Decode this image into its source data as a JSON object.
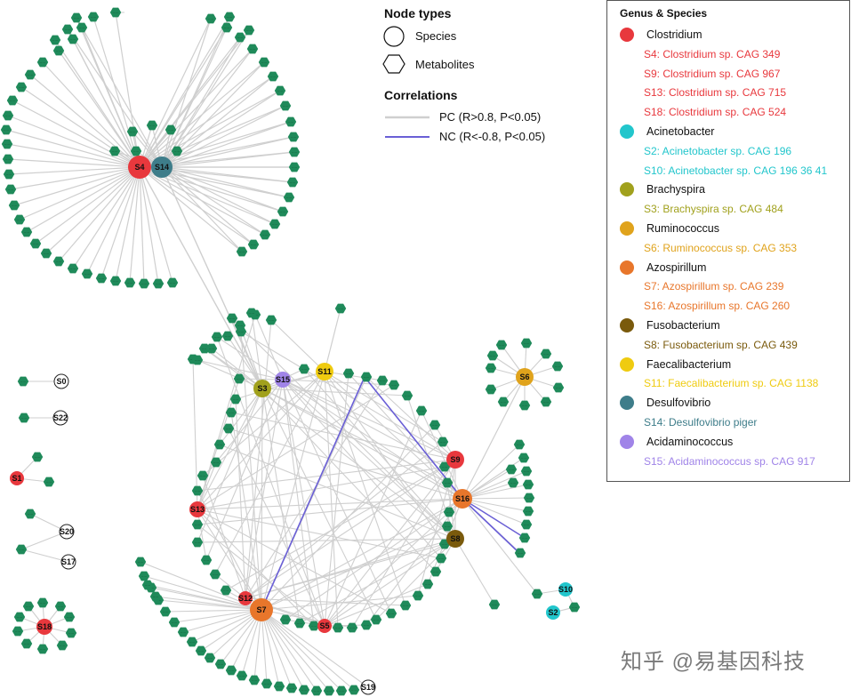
{
  "legend_types": {
    "title": "Node types",
    "species": "Species",
    "metabolites": "Metabolites",
    "corr_title": "Correlations",
    "pc": "PC (R>0.8, P<0.05)",
    "nc": "NC (R<-0.8, P<0.05)",
    "pc_color": "#cfcfcf",
    "nc_color": "#6a5fd6"
  },
  "genus_legend": {
    "title": "Genus & Species",
    "groups": [
      {
        "genus": "Clostridium",
        "color": "#e8383d",
        "species": [
          "S4: Clostridium sp. CAG 349",
          "S9: Clostridium sp. CAG 967",
          "S13: Clostridium sp. CAG 715",
          "S18: Clostridium sp. CAG 524"
        ]
      },
      {
        "genus": "Acinetobacter",
        "color": "#22c6cc",
        "species": [
          "S2: Acinetobacter sp. CAG 196",
          "S10: Acinetobacter sp. CAG 196 36 41"
        ]
      },
      {
        "genus": "Brachyspira",
        "color": "#a1a11d",
        "species": [
          "S3: Brachyspira sp. CAG 484"
        ]
      },
      {
        "genus": "Ruminococcus",
        "color": "#e0a31c",
        "species": [
          "S6: Ruminococcus sp. CAG 353"
        ]
      },
      {
        "genus": "Azospirillum",
        "color": "#e8762b",
        "species": [
          "S7: Azospirillum sp. CAG 239",
          "S16: Azospirillum sp. CAG 260"
        ]
      },
      {
        "genus": "Fusobacterium",
        "color": "#7a5a0c",
        "species": [
          "S8: Fusobacterium sp. CAG 439"
        ]
      },
      {
        "genus": "Faecalibacterium",
        "color": "#efcb10",
        "species": [
          "S11: Faecalibacterium sp. CAG 1138"
        ]
      },
      {
        "genus": "Desulfovibrio",
        "color": "#3e7d8a",
        "species": [
          "S14: Desulfovibrio piger"
        ]
      },
      {
        "genus": "Acidaminococcus",
        "color": "#a084e8",
        "species": [
          "S15: Acidaminococcus sp. CAG 917"
        ]
      }
    ]
  },
  "metabolite_color": "#1f8a5a",
  "species_nodes": [
    {
      "id": "S4",
      "fill": "#e8383d"
    },
    {
      "id": "S14",
      "fill": "#3e7d8a"
    },
    {
      "id": "S3",
      "fill": "#a1a11d"
    },
    {
      "id": "S15",
      "fill": "#a084e8"
    },
    {
      "id": "S11",
      "fill": "#efcb10"
    },
    {
      "id": "S6",
      "fill": "#e0a31c"
    },
    {
      "id": "S9",
      "fill": "#e8383d"
    },
    {
      "id": "S16",
      "fill": "#e8762b"
    },
    {
      "id": "S8",
      "fill": "#7a5a0c"
    },
    {
      "id": "S13",
      "fill": "#e8383d"
    },
    {
      "id": "S12",
      "fill": "#e8383d"
    },
    {
      "id": "S7",
      "fill": "#e8762b"
    },
    {
      "id": "S5",
      "fill": "#e8383d"
    },
    {
      "id": "S10",
      "fill": "#22c6cc"
    },
    {
      "id": "S2",
      "fill": "#22c6cc"
    },
    {
      "id": "S0",
      "fill": "#ffffff"
    },
    {
      "id": "S22",
      "fill": "#ffffff"
    },
    {
      "id": "S1",
      "fill": "#e8383d"
    },
    {
      "id": "S20",
      "fill": "#ffffff"
    },
    {
      "id": "S17",
      "fill": "#ffffff"
    },
    {
      "id": "S18",
      "fill": "#e8383d"
    },
    {
      "id": "S19",
      "fill": "#ffffff"
    }
  ],
  "watermark": "知乎 @易基因科技"
}
